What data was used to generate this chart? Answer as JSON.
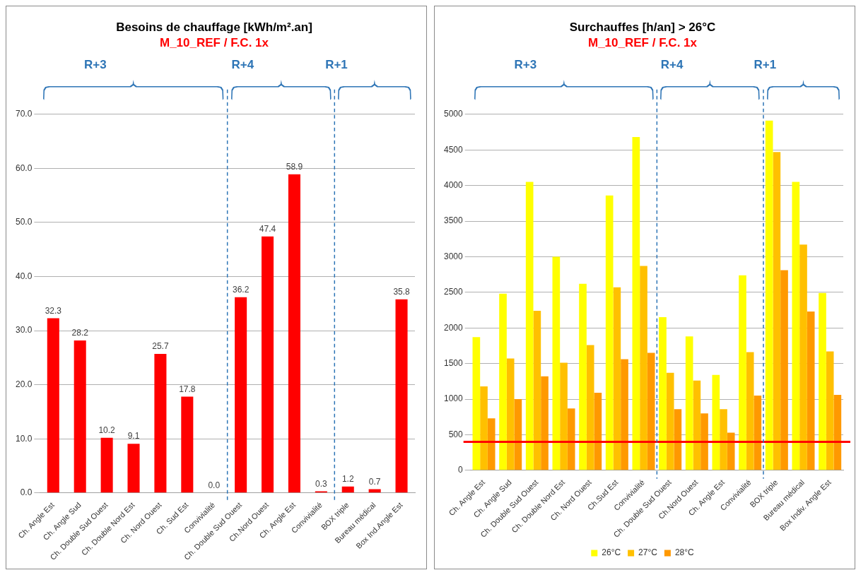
{
  "chart_data": [
    {
      "type": "bar",
      "title": "Besoins de chauffage [kWh/m².an]",
      "subtitle": "M_10_REF / F.C. 1x",
      "categories": [
        "Ch. Angle Est",
        "Ch. Angle Sud",
        "Ch. Double Sud Ouest",
        "Ch. Double Nord Est",
        "Ch. Nord Ouest",
        "Ch. Sud Est",
        "Convivialité",
        "Ch. Double Sud Ouest",
        "Ch.Nord Ouest",
        "Ch. Angle Est",
        "Convivialité",
        "BOX triple",
        "Bureau médical",
        "Box Ind.Angle Est"
      ],
      "values": [
        32.3,
        28.2,
        10.2,
        9.1,
        25.7,
        17.8,
        0.0,
        36.2,
        47.4,
        58.9,
        0.3,
        1.2,
        0.7,
        35.8
      ],
      "value_labels": [
        "32.3",
        "28.2",
        "10.2",
        "9.1",
        "25.7",
        "17.8",
        "0.0",
        "36.2",
        "47.4",
        "58.9",
        "0.3",
        "1.2",
        "0.7",
        "35.8"
      ],
      "color": "#ff0000",
      "ylim": [
        0,
        70
      ],
      "yticks": [
        {
          "value": 0,
          "label": "0.0"
        },
        {
          "value": 10,
          "label": "10.0"
        },
        {
          "value": 20,
          "label": "20.0"
        },
        {
          "value": 30,
          "label": "30.0"
        },
        {
          "value": 40,
          "label": "40.0"
        },
        {
          "value": 50,
          "label": "50.0"
        },
        {
          "value": 60,
          "label": "60.0"
        },
        {
          "value": 70,
          "label": "70.0"
        }
      ],
      "grid": "y",
      "annotations": [
        "R+3",
        "R+4",
        "R+1"
      ]
    },
    {
      "type": "bar",
      "title": "Surchauffes [h/an] > 26°C",
      "subtitle": "M_10_REF / F.C. 1x",
      "categories": [
        "Ch. Angle Est",
        "Ch. Angle Sud",
        "Ch. Double Sud Ouest",
        "Ch. Double Nord Est",
        "Ch. Nord Ouest",
        "Ch.Sud Est",
        "Convivialité",
        "Ch. Double Sud Ouest",
        "Ch.Nord Ouest",
        "Ch. Angle Est",
        "Convivialité",
        "BOX triple",
        "Bureau médical",
        "Box Indiv. Angle Est"
      ],
      "series": [
        {
          "name": "26°C",
          "color": "#ffff00",
          "values": [
            1870,
            2480,
            4050,
            3000,
            2620,
            3860,
            4680,
            2150,
            1880,
            1340,
            2740,
            4910,
            4050,
            2490
          ]
        },
        {
          "name": "27°C",
          "color": "#ffc000",
          "values": [
            1180,
            1570,
            2240,
            1510,
            1760,
            2570,
            2870,
            1370,
            1260,
            860,
            1660,
            4470,
            3170,
            1670
          ]
        },
        {
          "name": "28°C",
          "color": "#ff9900",
          "values": [
            730,
            1000,
            1320,
            870,
            1090,
            1560,
            1650,
            860,
            800,
            530,
            1050,
            2810,
            2230,
            1060
          ]
        }
      ],
      "ylim": [
        0,
        5000
      ],
      "yticks": [
        0,
        500,
        1000,
        1500,
        2000,
        2500,
        3000,
        3500,
        4000,
        4500,
        5000
      ],
      "grid": "y",
      "legend": "bottom",
      "annotations": [
        "R+3",
        "R+4",
        "R+1"
      ],
      "ref_lines": [
        {
          "axis": "y",
          "value": 400,
          "color": "#ff0000"
        }
      ]
    }
  ]
}
